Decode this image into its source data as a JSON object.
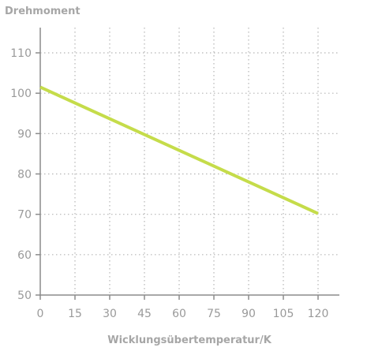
{
  "chart_data": {
    "type": "line",
    "title": "",
    "ylabel": "Drehmoment",
    "xlabel": "Wicklungsübertemperatur/K",
    "xlim": [
      0,
      120
    ],
    "ylim": [
      50,
      115
    ],
    "x_ticks": [
      0,
      15,
      30,
      45,
      60,
      75,
      90,
      105,
      120
    ],
    "y_ticks": [
      50,
      60,
      70,
      80,
      90,
      100,
      110
    ],
    "grid": true,
    "grid_style": "dotted",
    "series": [
      {
        "color": "#c5dc4a",
        "x": [
          0,
          120
        ],
        "y": [
          101.5,
          70.2
        ]
      }
    ]
  },
  "colors": {
    "axis": "#8c8c8c",
    "grid": "#b5b5b5",
    "tick_label": "#9a9a9a",
    "axis_label": "#a6a6a6",
    "line": "#c5dc4a"
  }
}
